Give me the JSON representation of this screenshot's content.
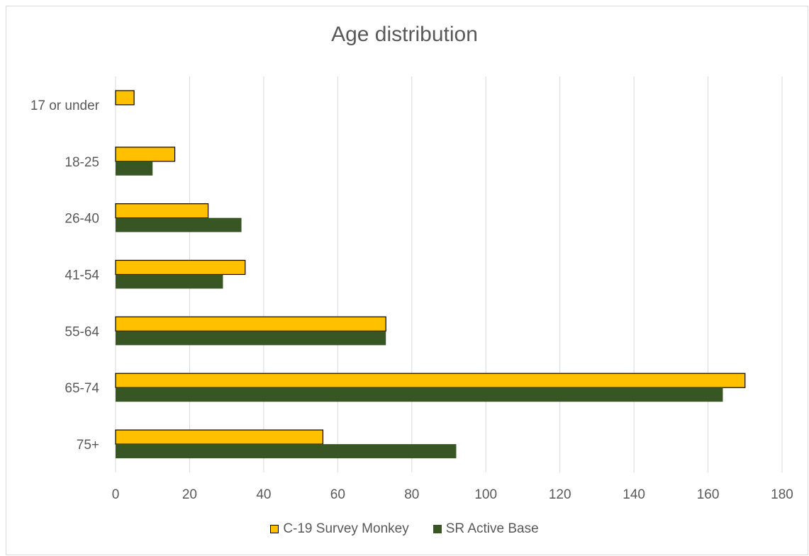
{
  "chart_data": {
    "type": "bar",
    "orientation": "horizontal",
    "title": "Age distribution",
    "categories": [
      "17 or under",
      "18-25",
      "26-40",
      "41-54",
      "55-64",
      "65-74",
      "75+"
    ],
    "series": [
      {
        "name": "C-19 Survey Monkey",
        "color": "#ffc000",
        "values": [
          5,
          16,
          25,
          35,
          73,
          170,
          56
        ]
      },
      {
        "name": "SR Active Base",
        "color": "#375623",
        "values": [
          0,
          10,
          34,
          29,
          73,
          164,
          92
        ]
      }
    ],
    "x_ticks": [
      "0",
      "20",
      "40",
      "60",
      "80",
      "100",
      "120",
      "140",
      "160",
      "180"
    ],
    "xlim": [
      0,
      180
    ],
    "grid": true,
    "legend_position": "bottom"
  }
}
